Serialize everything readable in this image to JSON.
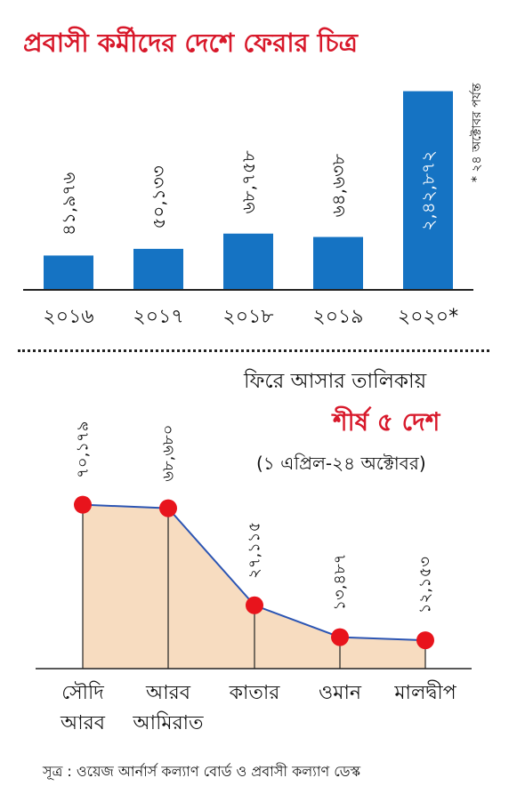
{
  "title": "প্রবাসী কর্মীদের দেশে ফেরার চিত্র",
  "footnote": "* ২৪ অক্টোবর পর্যন্ত",
  "line_chart_heading": "ফিরে আসার তালিকায়",
  "line_chart_heading_accent": "শীর্ষ ৫ দেশ",
  "line_chart_period": "(১ এপ্রিল-২৪ অক্টোবর)",
  "source": "সূত্র : ওয়েজ আর্নার্স কল্যাণ বোর্ড ও প্রবাসী কল্যাণ ডেস্ক",
  "colors": {
    "title_red": "#d8192b",
    "bar_blue": "#1573c3",
    "marker_red": "#e8141c",
    "line_blue": "#2c55b3",
    "area_fill": "#f7dcc0"
  },
  "chart_data": [
    {
      "type": "bar",
      "categories": [
        "২০১৬",
        "২০১৭",
        "২০১৮",
        "২০১৯",
        "২০২০*"
      ],
      "values": [
        41976,
        50133,
        68758,
        64638,
        242872
      ],
      "value_labels": [
        "৪১,৯৭৬",
        "৫০,১৩৩",
        "৬৮,৭৫৮",
        "৬৪,৬৩৮",
        "২,৪২,৮৭২"
      ],
      "ylim": [
        0,
        250000
      ],
      "grid": false
    },
    {
      "type": "area",
      "categories": [
        "সৌদি আরব",
        "আরব আমিরাত",
        "কাতার",
        "ওমান",
        "মালদ্বীপ"
      ],
      "category_lines": [
        [
          "সৌদি",
          "আরব"
        ],
        [
          "আরব",
          "আমিরাত"
        ],
        [
          "কাতার"
        ],
        [
          "ওমান"
        ],
        [
          "মালদ্বীপ"
        ]
      ],
      "values": [
        70179,
        68680,
        27115,
        13487,
        12153
      ],
      "value_labels": [
        "৭০,১৭৯",
        "৬৮,৬৮০",
        "২৭,১১৫",
        "১৩,৪৮৭",
        "১২,১৫৩"
      ],
      "ylim": [
        0,
        75000
      ],
      "grid": false
    }
  ]
}
